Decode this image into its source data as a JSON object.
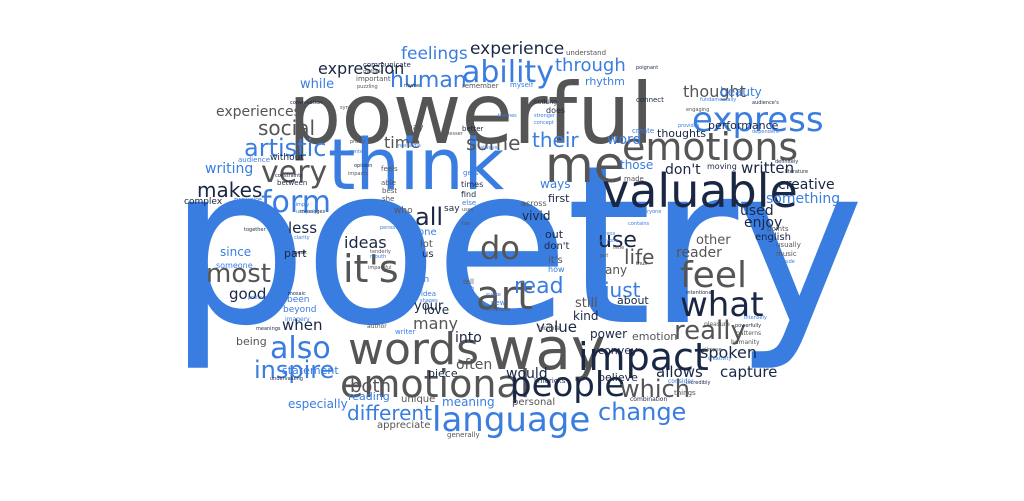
{
  "words": {
    "poetry": "poetry",
    "powerful": "powerful",
    "think": "think",
    "me": "me",
    "valuable": "valuable",
    "way": "way",
    "words": "words",
    "emotions": "emotions",
    "impact": "impact",
    "emotional": "emotional",
    "language": "language",
    "people": "people",
    "feel": "feel",
    "what": "what",
    "art": "art",
    "its": "it's",
    "express": "express",
    "ability": "ability",
    "form": "form",
    "very": "very",
    "do": "do",
    "also": "also",
    "most": "most",
    "really": "really",
    "inspire": "inspire",
    "change": "change",
    "which": "which",
    "different": "different",
    "human": "human",
    "artistic": "artistic",
    "experience": "experience",
    "through": "through",
    "expression": "expression",
    "feelings": "feelings",
    "social": "social",
    "their": "their",
    "some": "some",
    "makes": "makes",
    "all": "all",
    "read": "read",
    "use": "use",
    "life": "life",
    "just": "just",
    "spoken": "spoken",
    "capture": "capture",
    "allows": "allows",
    "ideas": "ideas",
    "both": "both",
    "good": "good",
    "when": "when",
    "experiences": "experiences",
    "time": "time",
    "thought": "thought",
    "written": "written",
    "dont": "don't",
    "creative": "creative",
    "something": "something",
    "used": "used",
    "enjoy": "enjoy",
    "english": "english",
    "other": "other",
    "reader": "reader",
    "value": "value",
    "many": "many",
    "into": "into",
    "often": "often",
    "would": "would",
    "still": "still",
    "kind": "kind",
    "your": "your",
    "less": "less",
    "since": "since",
    "writing": "writing",
    "while": "while",
    "rhythm": "rhythm",
    "beauty": "beauty",
    "word": "word",
    "thoughts": "thoughts",
    "performance": "performance",
    "meaning": "meaning",
    "especially": "especially",
    "statement": "statement",
    "reading": "reading",
    "power": "power",
    "emotion": "emotion",
    "forms": "forms",
    "convey": "convey",
    "believe": "believe",
    "personal": "personal",
    "unique": "unique",
    "appreciate": "appreciate",
    "piece": "piece",
    "being": "being",
    "love": "love",
    "part": "part",
    "vivid": "vivid",
    "first": "first",
    "out": "out",
    "dont2": "don't",
    "its2": "it's",
    "any": "any",
    "about": "about",
    "ways": "ways",
    "those": "those",
    "moving": "moving",
    "made": "made",
    "complex": "complex",
    "someone": "someone",
    "depth": "depth",
    "lot": "lot",
    "understand": "understand",
    "communicate": "communicate",
    "important": "important",
    "remember": "remember",
    "myself": "myself",
    "does": "does",
    "create": "create",
    "connect": "connect",
    "nothing": "nothing",
    "better": "better",
    "may": "may",
    "us": "us",
    "without": "without",
    "between": "between",
    "able": "able",
    "feels": "feels",
    "best": "best",
    "she": "she",
    "who": "who",
    "say": "say",
    "times": "times",
    "find": "find",
    "across": "across",
    "tell": "tell",
    "been": "been",
    "beyond": "beyond",
    "new": "new",
    "how": "how",
    "one": "one",
    "limericks": "limericks",
    "audience": "audience",
    "provoke": "provoke",
    "usually": "usually",
    "music": "music",
    "points": "points",
    "things": "things",
    "gets": "gets",
    "else": "else",
    "idea": "idea",
    "writer": "writer",
    "author": "author",
    "combination": "combination",
    "generally": "generally",
    "humanity": "humanity",
    "terrible": "terrible",
    "pleasure": "pleasure",
    "patterns": "patterns",
    "through2": "through",
    "conversation": "conversation",
    "puzzling": "puzzling",
    "syntax": "syntax",
    "nostalgia": "nostalgia",
    "thus": "thus",
    "incredibly": "incredibly",
    "definitely": "definitely",
    "literature": "literature",
    "consider": "consider",
    "imagery": "imagery",
    "meanings": "meanings",
    "profound": "profound",
    "together": "together",
    "undervaluing": "undervaluing",
    "constraints": "constraints",
    "opinion": "opinion",
    "impacts": "impacts",
    "messages": "messages",
    "multiple": "multiple",
    "rhyme": "rhyme",
    "poignant": "poignant",
    "fundamentally": "fundamentally",
    "engaging": "engaging",
    "provides": "provides",
    "dependent": "dependent",
    "audiences": "audience's",
    "stronger": "stronger",
    "concept": "concept",
    "themes": "themes",
    "always": "always",
    "lesser": "lesser",
    "pretty": "pretty",
    "context": "context",
    "everyone": "everyone",
    "process": "process",
    "im": "i'm",
    "mouth": "mouth",
    "anyone": "anyone",
    "intentional": "intentional",
    "glimpse": "glimpse",
    "creativity": "creativity",
    "solitude": "solitude",
    "intensely": "intensely",
    "powerfully": "powerfully",
    "simply": "simply",
    "tenderly": "tenderly",
    "speak": "speak",
    "clarity": "clarity",
    "uniquely": "uniquely",
    "mosaic": "mosaic",
    "impactful": "impactful",
    "shapes": "shapes",
    "rich": "rich",
    "enhances": "enhances",
    "personally": "personally",
    "uses": "uses",
    "too": "too",
    "evoke": "evoke",
    "little": "little",
    "put": "put",
    "contains": "contains"
  }
}
